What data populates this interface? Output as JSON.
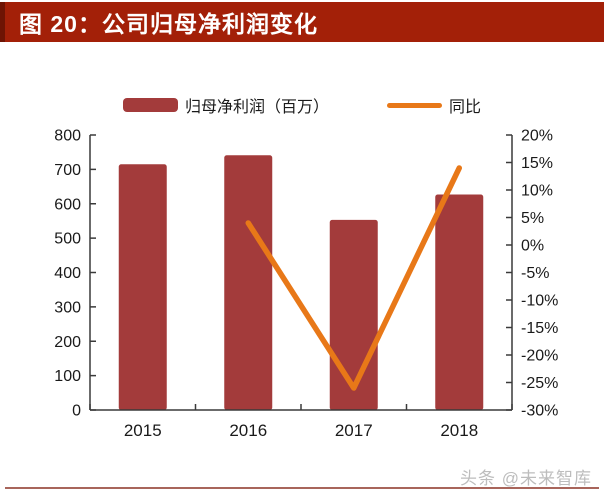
{
  "header": {
    "title": "图 20：公司归母净利润变化",
    "bg_color": "#A32008",
    "stripe_color": "#6E1404"
  },
  "legend": {
    "position": "top",
    "items": [
      {
        "label": "归母净利润（百万）",
        "swatch": "bar-swatch",
        "color": "#A33B3B"
      },
      {
        "label": "同比",
        "swatch": "line-swatch",
        "color": "#E87818"
      }
    ]
  },
  "chart_data": {
    "type": "combo",
    "title": "公司归母净利润变化",
    "categories": [
      "2015",
      "2016",
      "2017",
      "2018"
    ],
    "series": [
      {
        "name": "归母净利润（百万）",
        "type": "bar",
        "axis": "left",
        "color": "#A33B3B",
        "values": [
          715,
          741,
          553,
          627
        ]
      },
      {
        "name": "同比",
        "type": "line",
        "axis": "right",
        "color": "#E87818",
        "unit": "%",
        "values": [
          null,
          4,
          -26,
          14
        ]
      }
    ],
    "y_left": {
      "min": 0,
      "max": 800,
      "step": 100,
      "ticks": [
        "0",
        "100",
        "200",
        "300",
        "400",
        "500",
        "600",
        "700",
        "800"
      ]
    },
    "y_right": {
      "min": -30,
      "max": 20,
      "step": 5,
      "ticks": [
        "-30%",
        "-25%",
        "-20%",
        "-15%",
        "-10%",
        "-5%",
        "0%",
        "5%",
        "10%",
        "15%",
        "20%"
      ]
    },
    "grid": false,
    "legend_position": "top",
    "axis_color": "#3A3A3A",
    "tick_label_color": "#1A1A1A"
  },
  "footer": {
    "watermark": "头条 @未来智库",
    "divider_color": "#A8655B"
  }
}
